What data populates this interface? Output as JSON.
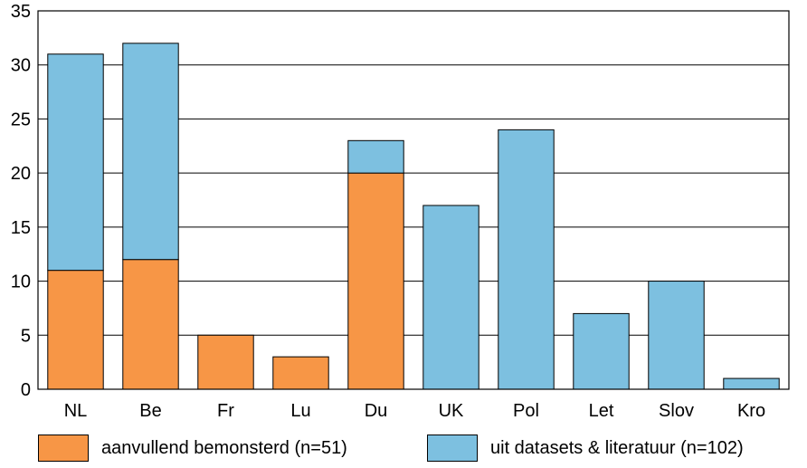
{
  "chart_data": {
    "type": "bar",
    "stacked": true,
    "categories": [
      "NL",
      "Be",
      "Fr",
      "Lu",
      "Du",
      "UK",
      "Pol",
      "Let",
      "Slov",
      "Kro"
    ],
    "series": [
      {
        "name": "aanvullend bemonsterd (n=51)",
        "values": [
          11,
          12,
          5,
          3,
          20,
          0,
          0,
          0,
          0,
          0
        ],
        "color": "#F79646"
      },
      {
        "name": "uit datasets &  literatuur (n=102)",
        "values": [
          20,
          20,
          0,
          0,
          3,
          17,
          24,
          7,
          10,
          1
        ],
        "color": "#7DC0E0"
      }
    ],
    "ylim": [
      0,
      35
    ],
    "yticks": [
      0,
      5,
      10,
      15,
      20,
      25,
      30,
      35
    ],
    "grid": true,
    "legend_position": "bottom"
  }
}
